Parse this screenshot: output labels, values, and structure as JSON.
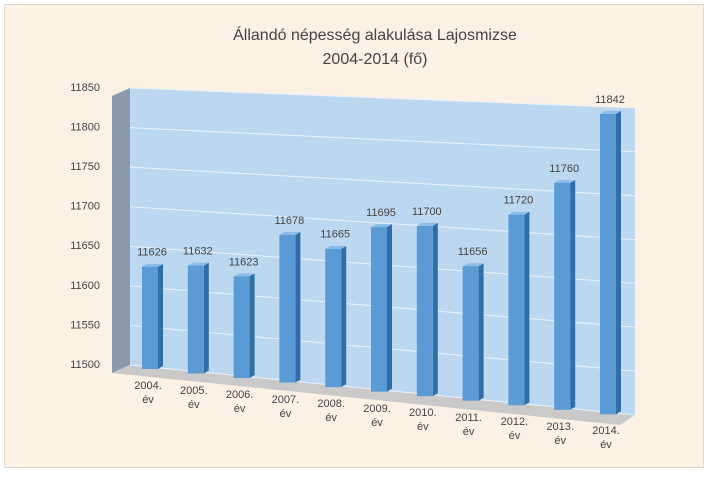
{
  "chart_data": {
    "type": "bar",
    "title": "Állandó népesség alakulása Lajosmizse",
    "subtitle": "2004-2014  (fő)",
    "categories": [
      "2004. év",
      "2005. év",
      "2006. év",
      "2007. év",
      "2008. év",
      "2009. év",
      "2010. év",
      "2011. év",
      "2012. év",
      "2013. év",
      "2014. év"
    ],
    "values": [
      11626,
      11632,
      11623,
      11678,
      11665,
      11695,
      11700,
      11656,
      11720,
      11760,
      11842
    ],
    "color": "#5b9bd5",
    "ylim": [
      11500,
      11850
    ],
    "yticks": [
      11500,
      11550,
      11600,
      11650,
      11700,
      11750,
      11800,
      11850
    ],
    "grid": true
  }
}
